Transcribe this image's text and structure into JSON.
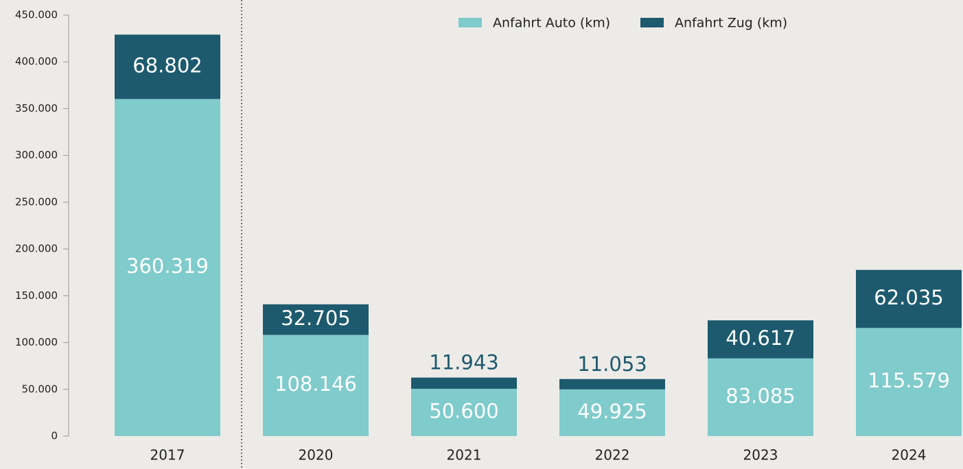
{
  "chart_data": {
    "type": "stacked_bar",
    "categories": [
      "2017",
      "2020",
      "2021",
      "2022",
      "2023",
      "2024"
    ],
    "series": [
      {
        "name": "Anfahrt Auto (km)",
        "color": "#80cbcc",
        "values": [
          360319,
          108146,
          50600,
          49925,
          83085,
          115579
        ],
        "value_labels": [
          "360.319",
          "108.146",
          "50.600",
          "49.925",
          "83.085",
          "115.579"
        ]
      },
      {
        "name": "Anfahrt Zug (km)",
        "color": "#1d5a6e",
        "values": [
          68802,
          32705,
          11943,
          11053,
          40617,
          62035
        ],
        "value_labels": [
          "68.802",
          "32.705",
          "11.943",
          "11.053",
          "40.617",
          "62.035"
        ]
      }
    ],
    "ylim": [
      0,
      450000
    ],
    "yticks": [
      0,
      {
        "value": 50000,
        "label": "50.000"
      },
      {
        "value": 100000,
        "label": "100.000"
      },
      {
        "value": 150000,
        "label": "150.000"
      },
      {
        "value": 200000,
        "label": "200.000"
      },
      {
        "value": 250000,
        "label": "250.000"
      },
      {
        "value": 300000,
        "label": "300.000"
      },
      {
        "value": 350000,
        "label": "350.000"
      },
      {
        "value": 400000,
        "label": "400.000"
      },
      {
        "value": 450000,
        "label": "450.000"
      }
    ]
  }
}
